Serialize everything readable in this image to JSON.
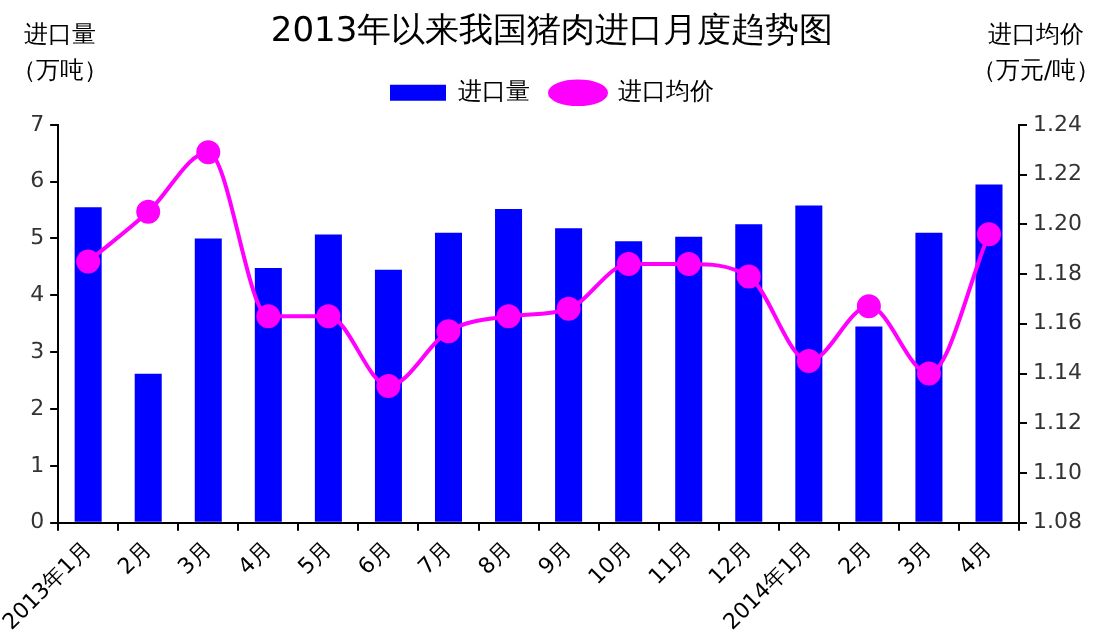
{
  "chart_data": {
    "type": "bar",
    "title": "2013年以来我国猪肉进口月度趋势图",
    "ylabel": "进口量（万吨）",
    "y2label": "进口均价（万元/吨）",
    "categories": [
      "2013年1月",
      "2月",
      "3月",
      "4月",
      "5月",
      "6月",
      "7月",
      "8月",
      "9月",
      "10月",
      "11月",
      "12月",
      "2014年1月",
      "2月",
      "3月",
      "4月"
    ],
    "series": [
      {
        "name": "进口量",
        "color": "#0000ff",
        "values": [
          5.55,
          2.62,
          5.0,
          4.48,
          5.07,
          4.45,
          5.1,
          5.52,
          5.18,
          4.95,
          5.03,
          5.25,
          5.58,
          3.45,
          5.1,
          5.95
        ]
      },
      {
        "name": "进口均价",
        "type": "line",
        "axis": "y2",
        "color": "#ff00ff",
        "marker": "circle",
        "values": [
          1.185,
          1.205,
          1.229,
          1.163,
          1.163,
          1.135,
          1.157,
          1.163,
          1.166,
          1.184,
          1.184,
          1.179,
          1.145,
          1.167,
          1.14,
          1.196
        ]
      }
    ],
    "ylim": [
      0,
      7
    ],
    "yticks": [
      0,
      1,
      2,
      3,
      4,
      5,
      6,
      7
    ],
    "y2lim": [
      1.08,
      1.24
    ],
    "y2ticks": [
      {
        "value": 1.08,
        "label": "1.08"
      },
      {
        "value": 1.1,
        "label": "1.10"
      },
      {
        "value": 1.12,
        "label": "1.12"
      },
      {
        "value": 1.14,
        "label": "1.14"
      },
      {
        "value": 1.16,
        "label": "1.16"
      },
      {
        "value": 1.18,
        "label": "1.18"
      },
      {
        "value": 1.2,
        "label": "1.20"
      },
      {
        "value": 1.22,
        "label": "1.22"
      },
      {
        "value": 1.24,
        "label": "1.24"
      }
    ],
    "grid": false,
    "legend": "top"
  }
}
